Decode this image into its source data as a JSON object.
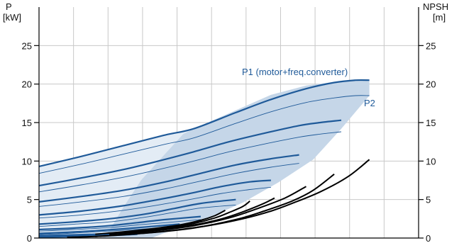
{
  "chart_data": {
    "type": "line",
    "left_axis": {
      "label_line1": "P",
      "label_line2": "[kW]",
      "range": [
        0,
        30
      ],
      "ticks": [
        0,
        5,
        10,
        15,
        20,
        25
      ],
      "tick_labels": [
        "0",
        "5",
        "10",
        "15",
        "20",
        "25"
      ]
    },
    "right_axis": {
      "label_line1": "NPSH",
      "label_line2": "[m]",
      "range": [
        0,
        30
      ],
      "ticks": [
        0,
        5,
        10,
        15,
        20,
        25
      ],
      "tick_labels": [
        "0",
        "5",
        "10",
        "15",
        "20",
        "25"
      ]
    },
    "x_range": [
      0,
      54
    ],
    "x_grid_count": 11,
    "grid": true,
    "colors": {
      "p1": "#1f5a99",
      "p2": "#1f5a99",
      "npsh": "#000000",
      "band_dark": "#c5d6e8",
      "band_light": "#e3ecf5",
      "grid": "#c8c8c8"
    },
    "annotations": {
      "p1_label": "P1 (motor+freq.converter)",
      "p2_label": "P2"
    },
    "band_outline": [
      [
        9,
        0
      ],
      [
        10,
        1
      ],
      [
        12,
        4
      ],
      [
        14.5,
        7.5
      ],
      [
        17.5,
        10.5
      ],
      [
        20.5,
        13.5
      ],
      [
        22,
        14.2
      ],
      [
        33,
        18.6
      ],
      [
        38,
        19.8
      ],
      [
        44,
        20.5
      ],
      [
        47,
        20.6
      ],
      [
        47,
        18.5
      ],
      [
        43,
        14.2
      ],
      [
        39,
        10.2
      ],
      [
        34,
        7.2
      ],
      [
        29,
        4.6
      ],
      [
        24,
        2.6
      ],
      [
        20,
        1.4
      ],
      [
        16,
        0
      ]
    ],
    "light_band_outline": [
      [
        0,
        9.3
      ],
      [
        22,
        14.2
      ],
      [
        20.5,
        13.5
      ],
      [
        17.5,
        10.5
      ],
      [
        14.5,
        7.5
      ],
      [
        12,
        4
      ],
      [
        10,
        1
      ],
      [
        9,
        0
      ],
      [
        0,
        0
      ]
    ],
    "p1_curves": [
      {
        "x": [
          0,
          6,
          12,
          18,
          22,
          28,
          33,
          38,
          42,
          45,
          47
        ],
        "y": [
          9.3,
          10.6,
          12.0,
          13.4,
          14.2,
          16.3,
          18.0,
          19.4,
          20.2,
          20.5,
          20.5
        ]
      },
      {
        "x": [
          0,
          6,
          12,
          17,
          22,
          27,
          32,
          37,
          40,
          43
        ],
        "y": [
          6.8,
          7.8,
          8.9,
          10.0,
          11.2,
          12.5,
          13.6,
          14.6,
          15.0,
          15.3
        ]
      },
      {
        "x": [
          0,
          6,
          12,
          18,
          23,
          28,
          33,
          37
        ],
        "y": [
          4.7,
          5.4,
          6.2,
          7.3,
          8.4,
          9.5,
          10.3,
          10.8
        ]
      },
      {
        "x": [
          0,
          6,
          12,
          17,
          22,
          26,
          30,
          33
        ],
        "y": [
          3.0,
          3.5,
          4.2,
          5.0,
          5.9,
          6.7,
          7.3,
          7.5
        ]
      },
      {
        "x": [
          0,
          5,
          10,
          15,
          19,
          23,
          28
        ],
        "y": [
          1.8,
          2.1,
          2.5,
          3.1,
          3.8,
          4.5,
          5.0
        ]
      },
      {
        "x": [
          0,
          5,
          10,
          14,
          18,
          23
        ],
        "y": [
          1.1,
          1.3,
          1.6,
          2.0,
          2.4,
          2.8
        ]
      },
      {
        "x": [
          0,
          4,
          8,
          12,
          16,
          20
        ],
        "y": [
          0.6,
          0.75,
          0.95,
          1.2,
          1.5,
          1.8
        ]
      },
      {
        "x": [
          0,
          4,
          8,
          11,
          14,
          17
        ],
        "y": [
          0.3,
          0.4,
          0.5,
          0.65,
          0.8,
          1.0
        ]
      },
      {
        "x": [
          0,
          3,
          6,
          9,
          12,
          14
        ],
        "y": [
          0.12,
          0.16,
          0.22,
          0.3,
          0.4,
          0.5
        ]
      }
    ],
    "p2_curves": [
      {
        "x": [
          0,
          6,
          12,
          18,
          22,
          28,
          33,
          38,
          42,
          45,
          47
        ],
        "y": [
          8.4,
          9.6,
          10.9,
          12.2,
          13.0,
          14.9,
          16.4,
          17.6,
          18.2,
          18.5,
          18.5
        ]
      },
      {
        "x": [
          0,
          6,
          12,
          17,
          22,
          27,
          32,
          37,
          40,
          43
        ],
        "y": [
          6.0,
          6.9,
          7.9,
          8.9,
          10.0,
          11.2,
          12.2,
          13.1,
          13.5,
          13.8
        ]
      },
      {
        "x": [
          0,
          6,
          12,
          18,
          23,
          28,
          33,
          37
        ],
        "y": [
          4.1,
          4.7,
          5.4,
          6.4,
          7.4,
          8.4,
          9.2,
          9.7
        ]
      },
      {
        "x": [
          0,
          6,
          12,
          17,
          22,
          26,
          30,
          33
        ],
        "y": [
          2.6,
          3.0,
          3.6,
          4.3,
          5.1,
          5.8,
          6.3,
          6.6
        ]
      },
      {
        "x": [
          0,
          5,
          10,
          15,
          19,
          23,
          28
        ],
        "y": [
          1.5,
          1.8,
          2.1,
          2.7,
          3.3,
          3.9,
          4.3
        ]
      },
      {
        "x": [
          0,
          5,
          10,
          14,
          18,
          23
        ],
        "y": [
          0.9,
          1.1,
          1.35,
          1.7,
          2.0,
          2.4
        ]
      },
      {
        "x": [
          0,
          4,
          8,
          12,
          16,
          20
        ],
        "y": [
          0.45,
          0.6,
          0.8,
          1.0,
          1.25,
          1.5
        ]
      },
      {
        "x": [
          0,
          4,
          8,
          11,
          14,
          17
        ],
        "y": [
          0.2,
          0.3,
          0.4,
          0.52,
          0.65,
          0.8
        ]
      }
    ],
    "npsh_curves": [
      {
        "x": [
          4,
          10,
          18,
          24,
          29,
          33,
          36,
          40,
          44,
          47
        ],
        "y": [
          0.1,
          0.3,
          0.9,
          1.6,
          2.5,
          3.5,
          4.5,
          6.0,
          8.0,
          10.2
        ]
      },
      {
        "x": [
          8,
          16,
          22,
          28,
          32,
          36,
          39,
          42
        ],
        "y": [
          0.2,
          0.7,
          1.3,
          2.4,
          3.5,
          4.8,
          6.2,
          8.3
        ]
      },
      {
        "x": [
          10,
          16,
          22,
          27,
          31,
          35,
          38
        ],
        "y": [
          0.5,
          0.9,
          1.6,
          2.6,
          3.8,
          5.2,
          6.7
        ]
      },
      {
        "x": [
          12,
          17,
          22,
          26,
          29,
          32,
          33.5
        ],
        "y": [
          0.7,
          1.1,
          1.7,
          2.5,
          3.4,
          4.5,
          5.2
        ]
      },
      {
        "x": [
          13,
          18,
          22,
          25,
          27,
          29,
          30
        ],
        "y": [
          0.8,
          1.3,
          1.9,
          2.6,
          3.3,
          4.1,
          4.8
        ]
      },
      {
        "x": [
          8,
          12,
          16,
          20,
          23,
          25,
          26.5
        ],
        "y": [
          0.5,
          0.8,
          1.2,
          1.7,
          2.3,
          2.9,
          3.6
        ]
      }
    ]
  }
}
